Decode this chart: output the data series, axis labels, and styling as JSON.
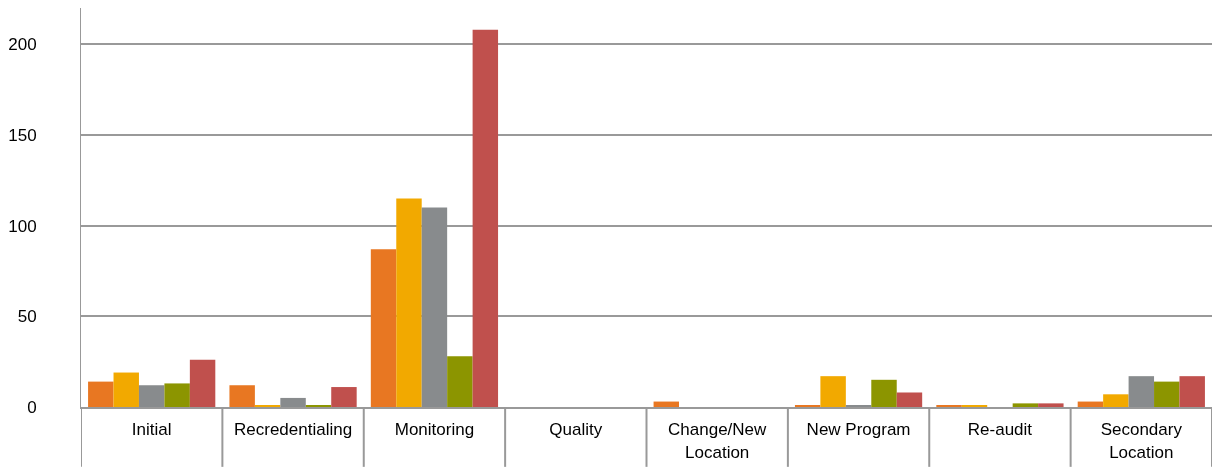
{
  "chart_data": {
    "type": "bar",
    "categories": [
      "Initial",
      "Recredentialing",
      "Monitoring",
      "Quality",
      "Change/New Location",
      "New Program",
      "Re-audit",
      "Secondary Location"
    ],
    "series": [
      {
        "color": "#e87722",
        "values": [
          14,
          12,
          87,
          0,
          3,
          1,
          1,
          3
        ]
      },
      {
        "color": "#f2a900",
        "values": [
          19,
          1,
          115,
          0,
          0,
          17,
          1,
          7
        ]
      },
      {
        "color": "#888b8d",
        "values": [
          12,
          5,
          110,
          0,
          0,
          1,
          0,
          17
        ]
      },
      {
        "color": "#8c9500",
        "values": [
          13,
          1,
          28,
          0,
          0,
          15,
          2,
          14
        ]
      },
      {
        "color": "#c0504d",
        "values": [
          26,
          11,
          208,
          0,
          0,
          8,
          2,
          17
        ]
      }
    ],
    "ylim": [
      0,
      220
    ],
    "yticks": [
      0,
      50,
      100,
      150,
      200
    ],
    "grid": "y"
  }
}
